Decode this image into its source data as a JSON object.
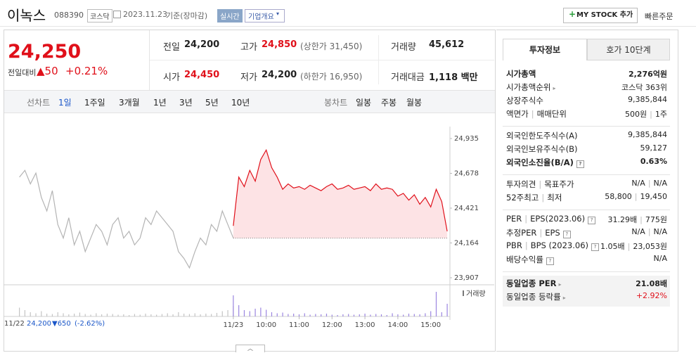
{
  "header": {
    "name": "이녹스",
    "code": "088390",
    "market": "코스닥",
    "date": "2023.11.23",
    "basis": "기준(장마감)",
    "realtime": "실시간",
    "company_info": "기업개요",
    "my_stock": "MY STOCK 추가",
    "quick_order": "빠른주문"
  },
  "quote": {
    "price": "24,250",
    "change_label": "전일대비",
    "change": "▲50",
    "change_rate": "+0.21%"
  },
  "summary": [
    [
      {
        "label": "전일",
        "value": "24,200"
      },
      {
        "label": "고가",
        "value": "24,850",
        "note": "(상한가 31,450)",
        "color": "#e0101a"
      },
      {
        "label": "거래량",
        "value": "45,612"
      }
    ],
    [
      {
        "label": "시가",
        "value": "24,450",
        "color": "#e0101a"
      },
      {
        "label": "저가",
        "value": "24,200",
        "note": "(하한가 16,950)"
      },
      {
        "label": "거래대금",
        "value": "1,118 백만"
      }
    ]
  ],
  "tabs": {
    "line_chart": "선차트",
    "periods": [
      "1일",
      "1주일",
      "3개월",
      "1년",
      "3년",
      "5년",
      "10년"
    ],
    "candle_chart": "봉차트",
    "candle_periods": [
      "일봉",
      "주봉",
      "월봉"
    ]
  },
  "chart_data": {
    "type": "line",
    "xlim": [
      -29,
      785
    ],
    "ylim": [
      23907,
      24935
    ],
    "yticks": [
      {
        "value": 23907,
        "label": "23,907"
      },
      {
        "value": 24164,
        "label": "24,164"
      },
      {
        "value": 24421,
        "label": "24,421"
      },
      {
        "value": 24678,
        "label": "24,678"
      },
      {
        "value": 24935,
        "label": "24,935"
      }
    ],
    "xticks": [
      {
        "value": 390,
        "label": "11/23"
      },
      {
        "value": 450,
        "label": "10:00"
      },
      {
        "value": 510,
        "label": "11:00"
      },
      {
        "value": 570,
        "label": "12:00"
      },
      {
        "value": 630,
        "label": "13:00"
      },
      {
        "value": 690,
        "label": "14:00"
      },
      {
        "value": 750,
        "label": "15:00"
      }
    ],
    "grid": false,
    "reference_line": 24200,
    "series": [
      {
        "color": "#b4b4b4",
        "fill": null,
        "x": [
          0,
          10,
          20,
          30,
          40,
          50,
          60,
          70,
          80,
          90,
          100,
          110,
          120,
          130,
          140,
          150,
          160,
          170,
          180,
          190,
          200,
          210,
          220,
          230,
          240,
          250,
          260,
          270,
          280,
          290,
          300,
          310,
          320,
          330,
          340,
          350,
          360,
          370,
          380,
          390
        ],
        "values": [
          24650,
          24700,
          24600,
          24680,
          24500,
          24400,
          24550,
          24300,
          24200,
          24350,
          24150,
          24250,
          24100,
          24200,
          24300,
          24250,
          24150,
          24300,
          24350,
          24200,
          24250,
          24150,
          24200,
          24350,
          24300,
          24400,
          24350,
          24300,
          24250,
          24100,
          24050,
          23980,
          24100,
          24200,
          24150,
          24300,
          24250,
          24400,
          24300,
          24200
        ]
      },
      {
        "color": "#e0101a",
        "fill": "#fde3e5",
        "x": [
          390,
          400,
          410,
          420,
          430,
          440,
          450,
          460,
          470,
          480,
          490,
          500,
          510,
          520,
          530,
          540,
          550,
          560,
          570,
          580,
          590,
          600,
          610,
          620,
          630,
          640,
          650,
          660,
          670,
          680,
          690,
          700,
          710,
          720,
          730,
          740,
          750,
          760,
          770,
          780
        ],
        "values": [
          24290,
          24650,
          24580,
          24700,
          24620,
          24780,
          24850,
          24720,
          24650,
          24560,
          24600,
          24570,
          24580,
          24560,
          24590,
          24570,
          24550,
          24580,
          24600,
          24560,
          24570,
          24590,
          24560,
          24570,
          24580,
          24550,
          24600,
          24560,
          24570,
          24560,
          24510,
          24530,
          24480,
          24520,
          24450,
          24500,
          24430,
          24560,
          24470,
          24250
        ]
      }
    ],
    "volume": {
      "name": "거래량",
      "ylim": [
        0,
        8000
      ],
      "colors": [
        "#c4c4c4",
        "#9b86e0"
      ],
      "series": [
        [
          2500,
          1800,
          1200,
          900,
          1500,
          800,
          700,
          1200,
          900,
          600,
          800,
          1100,
          700,
          500,
          900,
          600,
          800,
          700,
          500,
          600,
          400,
          700,
          500,
          800,
          600,
          500,
          700,
          900,
          600,
          1200,
          800,
          700,
          900,
          600,
          800,
          700,
          1000,
          1500,
          1800,
          3000
        ],
        [
          6000,
          3200,
          1800,
          1500,
          2200,
          2500,
          1900,
          1200,
          900,
          1100,
          700,
          800,
          600,
          900,
          500,
          700,
          600,
          800,
          500,
          400,
          600,
          700,
          500,
          600,
          800,
          500,
          700,
          600,
          400,
          900,
          600,
          500,
          800,
          700,
          600,
          900,
          1500,
          7000,
          1200,
          3600
        ]
      ]
    },
    "prev_day": {
      "date": "11/22",
      "close": "24,200",
      "change": "▼650",
      "change_rate": "(-2.62%)"
    }
  },
  "investment": {
    "tabs": [
      "투자정보",
      "호가 10단계"
    ],
    "sections": [
      [
        {
          "labels": [
            "시가총액"
          ],
          "values": [
            "2,276억원"
          ],
          "bold": true
        },
        {
          "labels": [
            "시가총액순위"
          ],
          "values": [
            "코스닥 363위"
          ],
          "arrow": true
        },
        {
          "labels": [
            "상장주식수"
          ],
          "values": [
            "9,385,844"
          ]
        },
        {
          "labels": [
            "액면가",
            "매매단위"
          ],
          "values": [
            "500원",
            "1주"
          ]
        }
      ],
      [
        {
          "labels": [
            "외국인한도주식수(A)"
          ],
          "values": [
            "9,385,844"
          ]
        },
        {
          "labels": [
            "외국인보유주식수(B)"
          ],
          "values": [
            "59,127"
          ]
        },
        {
          "labels": [
            "외국인소진율(B/A)"
          ],
          "values": [
            "0.63%"
          ],
          "bold": true,
          "help": true
        }
      ],
      [
        {
          "labels": [
            "투자의견",
            "목표주가"
          ],
          "values": [
            "N/A",
            "N/A"
          ]
        },
        {
          "labels": [
            "52주최고",
            "최저"
          ],
          "values": [
            "58,800",
            "19,450"
          ]
        }
      ],
      [
        {
          "labels": [
            "PER",
            "EPS(2023.06)"
          ],
          "values": [
            "31.29배",
            "775원"
          ],
          "help": true
        },
        {
          "labels": [
            "추정PER",
            "EPS"
          ],
          "values": [
            "N/A",
            "N/A"
          ],
          "help": true
        },
        {
          "labels": [
            "PBR",
            "BPS (2023.06)"
          ],
          "values": [
            "1.05배",
            "23,053원"
          ],
          "help": true
        },
        {
          "labels": [
            "배당수익률"
          ],
          "values": [
            "N/A"
          ],
          "help": true
        }
      ],
      [
        {
          "labels": [
            "동일업종 PER"
          ],
          "values": [
            "21.08배"
          ],
          "bold": true,
          "arrow": true
        },
        {
          "labels": [
            "동일업종 등락률"
          ],
          "values": [
            "+2.92%"
          ],
          "arrow": true,
          "color": "#e0101a"
        }
      ]
    ]
  }
}
